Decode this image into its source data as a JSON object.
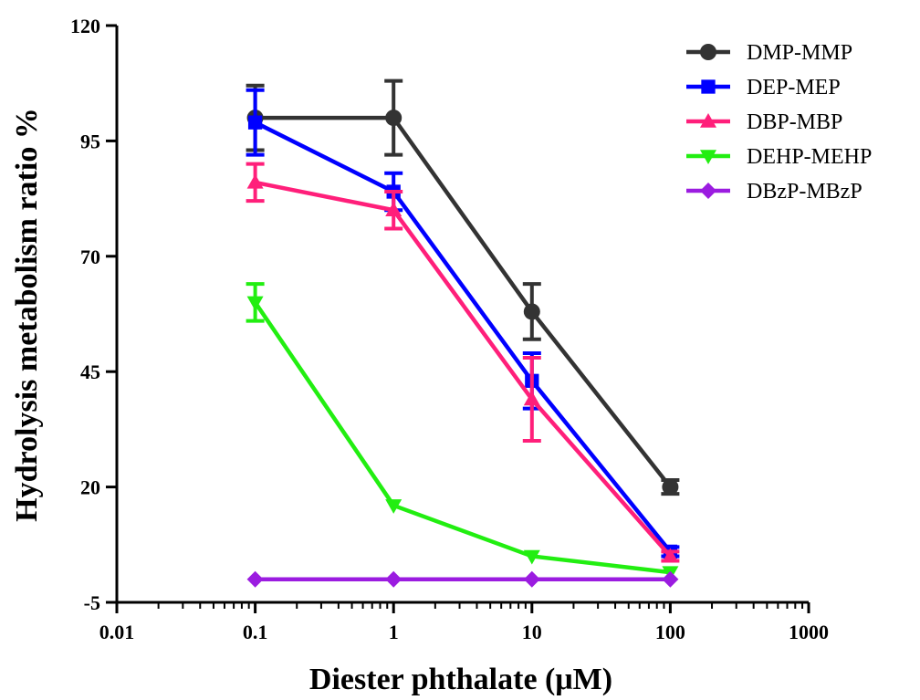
{
  "chart_data": {
    "type": "line",
    "xlabel": "Diester phthalate (μM)",
    "ylabel": "Hydrolysis metabolism ratio %",
    "x_scale": "log",
    "xlim": [
      0.01,
      1000
    ],
    "ylim": [
      -5,
      120
    ],
    "x_ticks": [
      0.01,
      0.1,
      1,
      10,
      100,
      1000
    ],
    "x_tick_labels": [
      "0.01",
      "0.1",
      "1",
      "10",
      "100",
      "1000"
    ],
    "y_ticks": [
      -5,
      20,
      45,
      70,
      95,
      120
    ],
    "y_tick_labels": [
      "-5",
      "20",
      "45",
      "70",
      "95",
      "120"
    ],
    "grid": false,
    "legend_position": "top-right",
    "x": [
      0.1,
      1,
      10,
      100
    ],
    "series": [
      {
        "name": "DMP-MMP",
        "color": "#333333",
        "marker": "circle",
        "values": [
          100,
          100,
          58,
          20
        ],
        "errors": [
          7,
          8,
          6,
          1.5
        ]
      },
      {
        "name": "DEP-MEP",
        "color": "#0000ff",
        "marker": "square",
        "values": [
          99,
          84,
          43,
          6
        ],
        "errors": [
          7,
          4,
          6,
          1
        ]
      },
      {
        "name": "DBP-MBP",
        "color": "#ff1f7a",
        "marker": "triangle-up",
        "values": [
          86,
          80,
          39,
          5
        ],
        "errors": [
          4,
          4,
          9,
          1
        ]
      },
      {
        "name": "DEHP-MEHP",
        "color": "#22ee11",
        "marker": "triangle-down",
        "values": [
          60,
          16,
          5,
          1.5
        ],
        "errors": [
          4,
          0.5,
          0.5,
          0.5
        ]
      },
      {
        "name": "DBzP-MBzP",
        "color": "#9b1ce0",
        "marker": "diamond",
        "values": [
          0,
          0,
          0,
          0
        ],
        "errors": [
          0,
          0,
          0,
          0
        ]
      }
    ]
  }
}
